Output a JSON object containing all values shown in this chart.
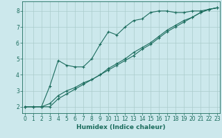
{
  "xlabel": "Humidex (Indice chaleur)",
  "background_color": "#cce8ec",
  "grid_color": "#aacccc",
  "line_color": "#1a6b5c",
  "x_data": [
    0,
    1,
    2,
    3,
    4,
    5,
    6,
    7,
    8,
    9,
    10,
    11,
    12,
    13,
    14,
    15,
    16,
    17,
    18,
    19,
    20,
    21,
    22,
    23
  ],
  "line1": [
    2.0,
    2.0,
    2.0,
    3.3,
    4.9,
    4.6,
    4.5,
    4.5,
    5.0,
    5.9,
    6.7,
    6.5,
    7.0,
    7.4,
    7.5,
    7.9,
    8.0,
    8.0,
    7.9,
    7.9,
    8.0,
    8.0,
    8.1,
    8.2
  ],
  "line2": [
    2.0,
    2.0,
    2.0,
    2.2,
    2.7,
    3.0,
    3.2,
    3.5,
    3.7,
    4.0,
    4.4,
    4.7,
    5.0,
    5.4,
    5.7,
    6.0,
    6.4,
    6.8,
    7.1,
    7.4,
    7.6,
    7.9,
    8.1,
    8.2
  ],
  "line3": [
    2.0,
    2.0,
    2.0,
    2.0,
    2.5,
    2.8,
    3.1,
    3.4,
    3.7,
    4.0,
    4.3,
    4.6,
    4.9,
    5.2,
    5.6,
    5.9,
    6.3,
    6.7,
    7.0,
    7.3,
    7.6,
    7.9,
    8.1,
    8.2
  ],
  "xlim": [
    -0.3,
    23.3
  ],
  "ylim": [
    1.6,
    8.6
  ],
  "yticks": [
    2,
    3,
    4,
    5,
    6,
    7,
    8
  ],
  "xticks": [
    0,
    1,
    2,
    3,
    4,
    5,
    6,
    7,
    8,
    9,
    10,
    11,
    12,
    13,
    14,
    15,
    16,
    17,
    18,
    19,
    20,
    21,
    22,
    23
  ],
  "tick_fontsize": 5.5,
  "xlabel_fontsize": 6.5
}
